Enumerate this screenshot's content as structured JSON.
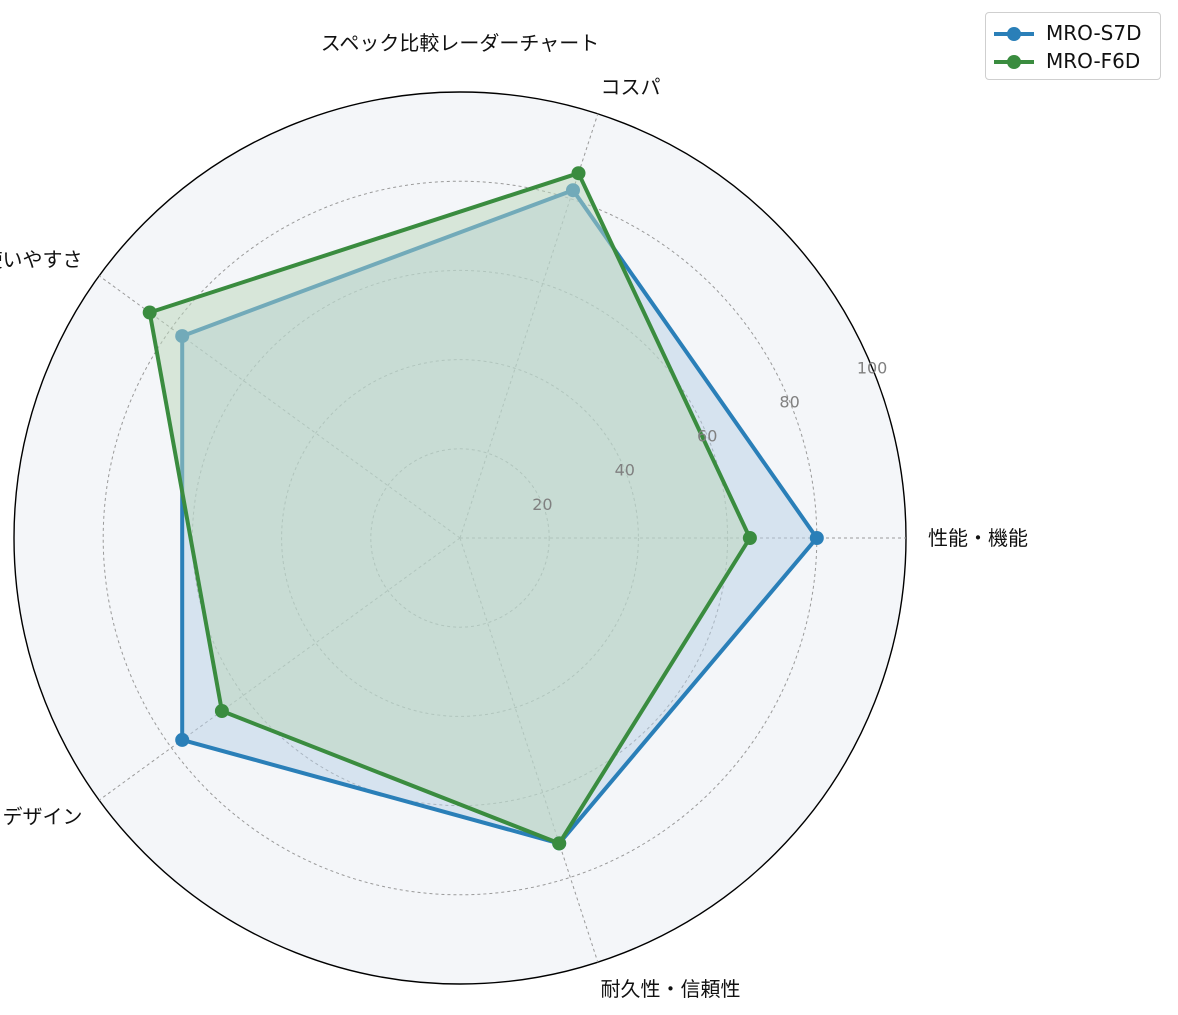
{
  "chart_data": {
    "type": "radar",
    "title": "スペック比較レーダーチャート",
    "axes": [
      "性能・機能",
      "コスパ",
      "使いやすさ",
      "デザイン",
      "耐久性・信頼性"
    ],
    "rlim": [
      0,
      100
    ],
    "r_ticks": [
      20,
      40,
      60,
      80,
      100
    ],
    "r_tick_labels": [
      "20",
      "40",
      "60",
      "80",
      "100"
    ],
    "grid": true,
    "legend_position": "top-right",
    "series": [
      {
        "name": "MRO-S7D",
        "color": "#2a7fb8",
        "fill": "#b7cfe6",
        "values": [
          80,
          82,
          77,
          77,
          72
        ]
      },
      {
        "name": "MRO-F6D",
        "color": "#3a8c3f",
        "fill": "#b9d6b9",
        "values": [
          65,
          86,
          86,
          66,
          72
        ]
      }
    ]
  }
}
